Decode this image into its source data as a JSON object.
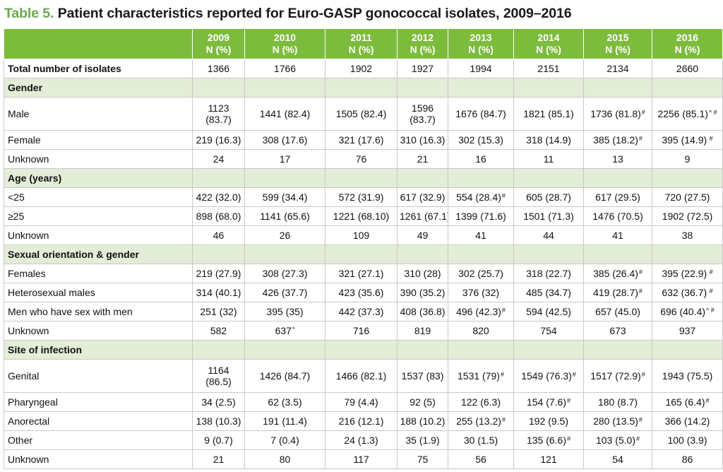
{
  "title": {
    "number": "Table 5.",
    "text": "Patient characteristics reported for Euro-GASP gonococcal isolates, 2009–2016"
  },
  "header": {
    "unit": "N (%)",
    "years": [
      "2009",
      "2010",
      "2011",
      "2012",
      "2013",
      "2014",
      "2015",
      "2016"
    ]
  },
  "rows": [
    {
      "label": "Total number of isolates",
      "type": "bold",
      "cells": [
        {
          "v": "1366"
        },
        {
          "v": "1766"
        },
        {
          "v": "1902"
        },
        {
          "v": "1927"
        },
        {
          "v": "1994"
        },
        {
          "v": "2151"
        },
        {
          "v": "2134"
        },
        {
          "v": "2660"
        }
      ]
    },
    {
      "label": "Gender",
      "type": "section"
    },
    {
      "label": "Male",
      "type": "tall",
      "cells": [
        {
          "v": "1123 (83.7)"
        },
        {
          "v": "1441 (82.4)"
        },
        {
          "v": "1505 (82.4)"
        },
        {
          "v": "1596 (83.7)"
        },
        {
          "v": "1676 (84.7)"
        },
        {
          "v": "1821 (85.1)"
        },
        {
          "v": "1736 (81.8)",
          "s": "#"
        },
        {
          "v": "2256 (85.1)",
          "s": "^ #"
        }
      ]
    },
    {
      "label": "Female",
      "cells": [
        {
          "v": "219 (16.3)"
        },
        {
          "v": "308 (17.6)"
        },
        {
          "v": "321 (17.6)"
        },
        {
          "v": "310 (16.3)"
        },
        {
          "v": "302 (15.3)"
        },
        {
          "v": "318 (14.9)"
        },
        {
          "v": "385 (18.2)",
          "s": "#"
        },
        {
          "v": "395 (14.9)",
          "s": " #"
        }
      ]
    },
    {
      "label": "Unknown",
      "cells": [
        {
          "v": "24"
        },
        {
          "v": "17"
        },
        {
          "v": "76"
        },
        {
          "v": "21"
        },
        {
          "v": "16"
        },
        {
          "v": "11"
        },
        {
          "v": "13"
        },
        {
          "v": "9"
        }
      ]
    },
    {
      "label": "Age (years)",
      "type": "section"
    },
    {
      "label": "<25",
      "cells": [
        {
          "v": "422 (32.0)"
        },
        {
          "v": "599 (34.4)"
        },
        {
          "v": "572 (31.9)"
        },
        {
          "v": "617 (32.9)"
        },
        {
          "v": "554 (28.4)",
          "s": "#"
        },
        {
          "v": "605 (28.7)"
        },
        {
          "v": "617 (29.5)"
        },
        {
          "v": "720 (27.5)"
        }
      ]
    },
    {
      "label": "≥25",
      "cells": [
        {
          "v": "898 (68.0)"
        },
        {
          "v": "1141 (65.6)"
        },
        {
          "v": "1221 (68.10)"
        },
        {
          "v": "1261 (67.1)"
        },
        {
          "v": "1399 (71.6)"
        },
        {
          "v": "1501 (71.3)"
        },
        {
          "v": "1476 (70.5)"
        },
        {
          "v": "1902 (72.5)"
        }
      ]
    },
    {
      "label": "Unknown",
      "cells": [
        {
          "v": "46"
        },
        {
          "v": "26"
        },
        {
          "v": "109"
        },
        {
          "v": "49"
        },
        {
          "v": "41"
        },
        {
          "v": "44"
        },
        {
          "v": "41"
        },
        {
          "v": "38"
        }
      ]
    },
    {
      "label": "Sexual orientation & gender",
      "type": "section"
    },
    {
      "label": "Females",
      "cells": [
        {
          "v": "219 (27.9)"
        },
        {
          "v": "308 (27.3)"
        },
        {
          "v": "321 (27.1)"
        },
        {
          "v": "310 (28)"
        },
        {
          "v": "302 (25.7)"
        },
        {
          "v": "318 (22.7)"
        },
        {
          "v": "385 (26.4)",
          "s": "#"
        },
        {
          "v": "395 (22.9)",
          "s": " #"
        }
      ]
    },
    {
      "label": "Heterosexual males",
      "cells": [
        {
          "v": "314 (40.1)"
        },
        {
          "v": "426 (37.7)"
        },
        {
          "v": "423 (35.6)"
        },
        {
          "v": "390 (35.2)"
        },
        {
          "v": "376 (32)"
        },
        {
          "v": "485 (34.7)"
        },
        {
          "v": "419 (28.7)",
          "s": "#"
        },
        {
          "v": "632 (36.7)",
          "s": " #"
        }
      ]
    },
    {
      "label": "Men who have sex with men",
      "cells": [
        {
          "v": "251 (32)"
        },
        {
          "v": "395 (35)"
        },
        {
          "v": "442 (37.3)"
        },
        {
          "v": "408 (36.8)"
        },
        {
          "v": "496 (42.3)",
          "s": "#"
        },
        {
          "v": "594 (42.5)"
        },
        {
          "v": "657 (45.0)"
        },
        {
          "v": "696 (40.4)",
          "s": "^ #"
        }
      ]
    },
    {
      "label": "Unknown",
      "cells": [
        {
          "v": "582"
        },
        {
          "v": "637",
          "s": "*"
        },
        {
          "v": "716"
        },
        {
          "v": "819"
        },
        {
          "v": "820"
        },
        {
          "v": "754"
        },
        {
          "v": "673"
        },
        {
          "v": "937"
        }
      ]
    },
    {
      "label": "Site of infection",
      "type": "section"
    },
    {
      "label": "Genital",
      "type": "tall",
      "cells": [
        {
          "v": "1164 (86.5)"
        },
        {
          "v": "1426 (84.7)"
        },
        {
          "v": "1466 (82.1)"
        },
        {
          "v": "1537 (83)"
        },
        {
          "v": "1531 (79)",
          "s": "#"
        },
        {
          "v": "1549 (76.3)",
          "s": "#"
        },
        {
          "v": "1517 (72.9)",
          "s": "#"
        },
        {
          "v": "1943 (75.5)"
        }
      ]
    },
    {
      "label": "Pharyngeal",
      "cells": [
        {
          "v": "34 (2.5)"
        },
        {
          "v": "62 (3.5)"
        },
        {
          "v": "79 (4.4)"
        },
        {
          "v": "92 (5)"
        },
        {
          "v": "122 (6.3)"
        },
        {
          "v": "154 (7.6)",
          "s": "#"
        },
        {
          "v": "180 (8.7)"
        },
        {
          "v": "165 (6.4)",
          "s": "#"
        }
      ]
    },
    {
      "label": "Anorectal",
      "cells": [
        {
          "v": "138 (10.3)"
        },
        {
          "v": "191 (11.4)"
        },
        {
          "v": "216 (12.1)"
        },
        {
          "v": "188 (10.2)"
        },
        {
          "v": "255 (13.2)",
          "s": "#"
        },
        {
          "v": "192 (9.5)"
        },
        {
          "v": "280 (13.5)",
          "s": "#"
        },
        {
          "v": "366 (14.2)"
        }
      ]
    },
    {
      "label": "Other",
      "cells": [
        {
          "v": "9 (0.7)"
        },
        {
          "v": "7 (0.4)"
        },
        {
          "v": "24 (1.3)"
        },
        {
          "v": "35 (1.9)"
        },
        {
          "v": "30 (1.5)"
        },
        {
          "v": "135 (6.6)",
          "s": "#"
        },
        {
          "v": "103 (5.0)",
          "s": "#"
        },
        {
          "v": "100 (3.9)"
        }
      ]
    },
    {
      "label": "Unknown",
      "cells": [
        {
          "v": "21"
        },
        {
          "v": "80"
        },
        {
          "v": "117"
        },
        {
          "v": "75"
        },
        {
          "v": "56"
        },
        {
          "v": "121"
        },
        {
          "v": "54"
        },
        {
          "v": "86"
        }
      ]
    }
  ]
}
